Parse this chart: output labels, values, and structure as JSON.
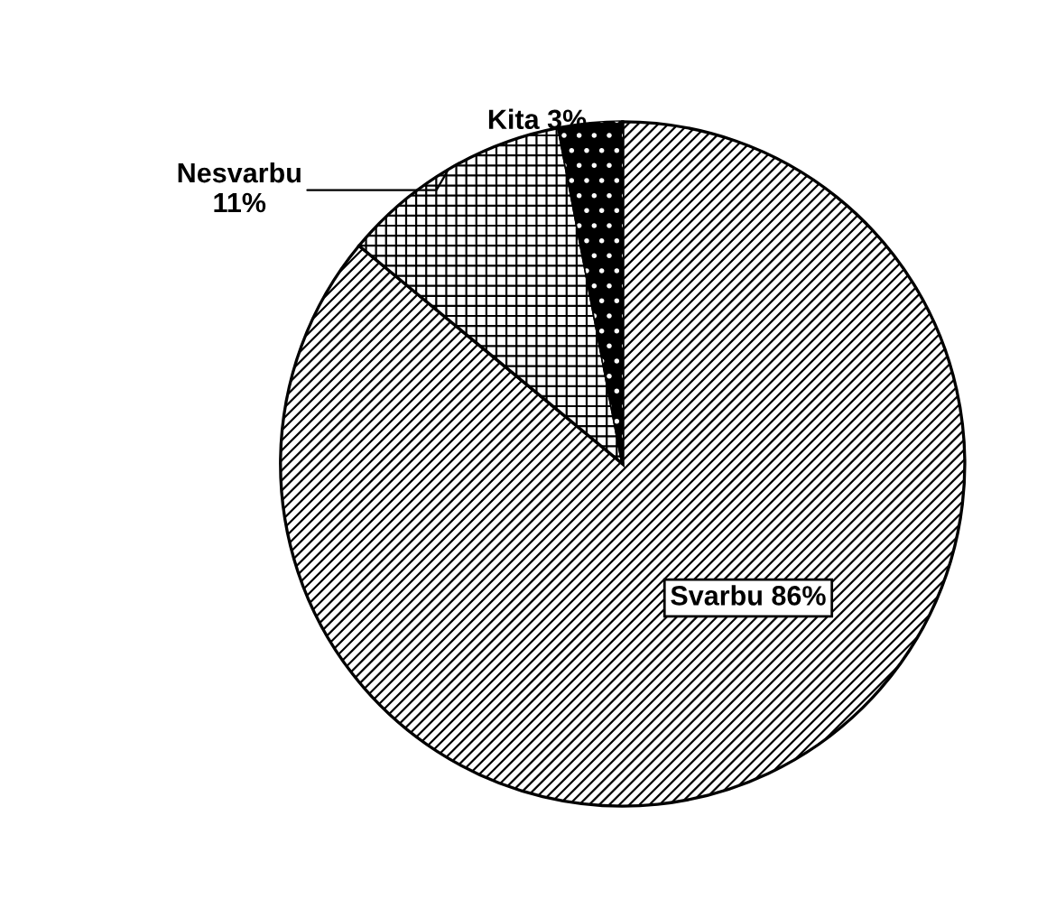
{
  "chart_data": {
    "type": "pie",
    "categories": [
      "Svarbu",
      "Nesvarbu",
      "Kita"
    ],
    "values": [
      86,
      11,
      3
    ],
    "colors": [
      "#ffffff",
      "#ffffff",
      "#000000"
    ],
    "value_labels": [
      "86%",
      "11%",
      "3%"
    ],
    "legend": false
  }
}
